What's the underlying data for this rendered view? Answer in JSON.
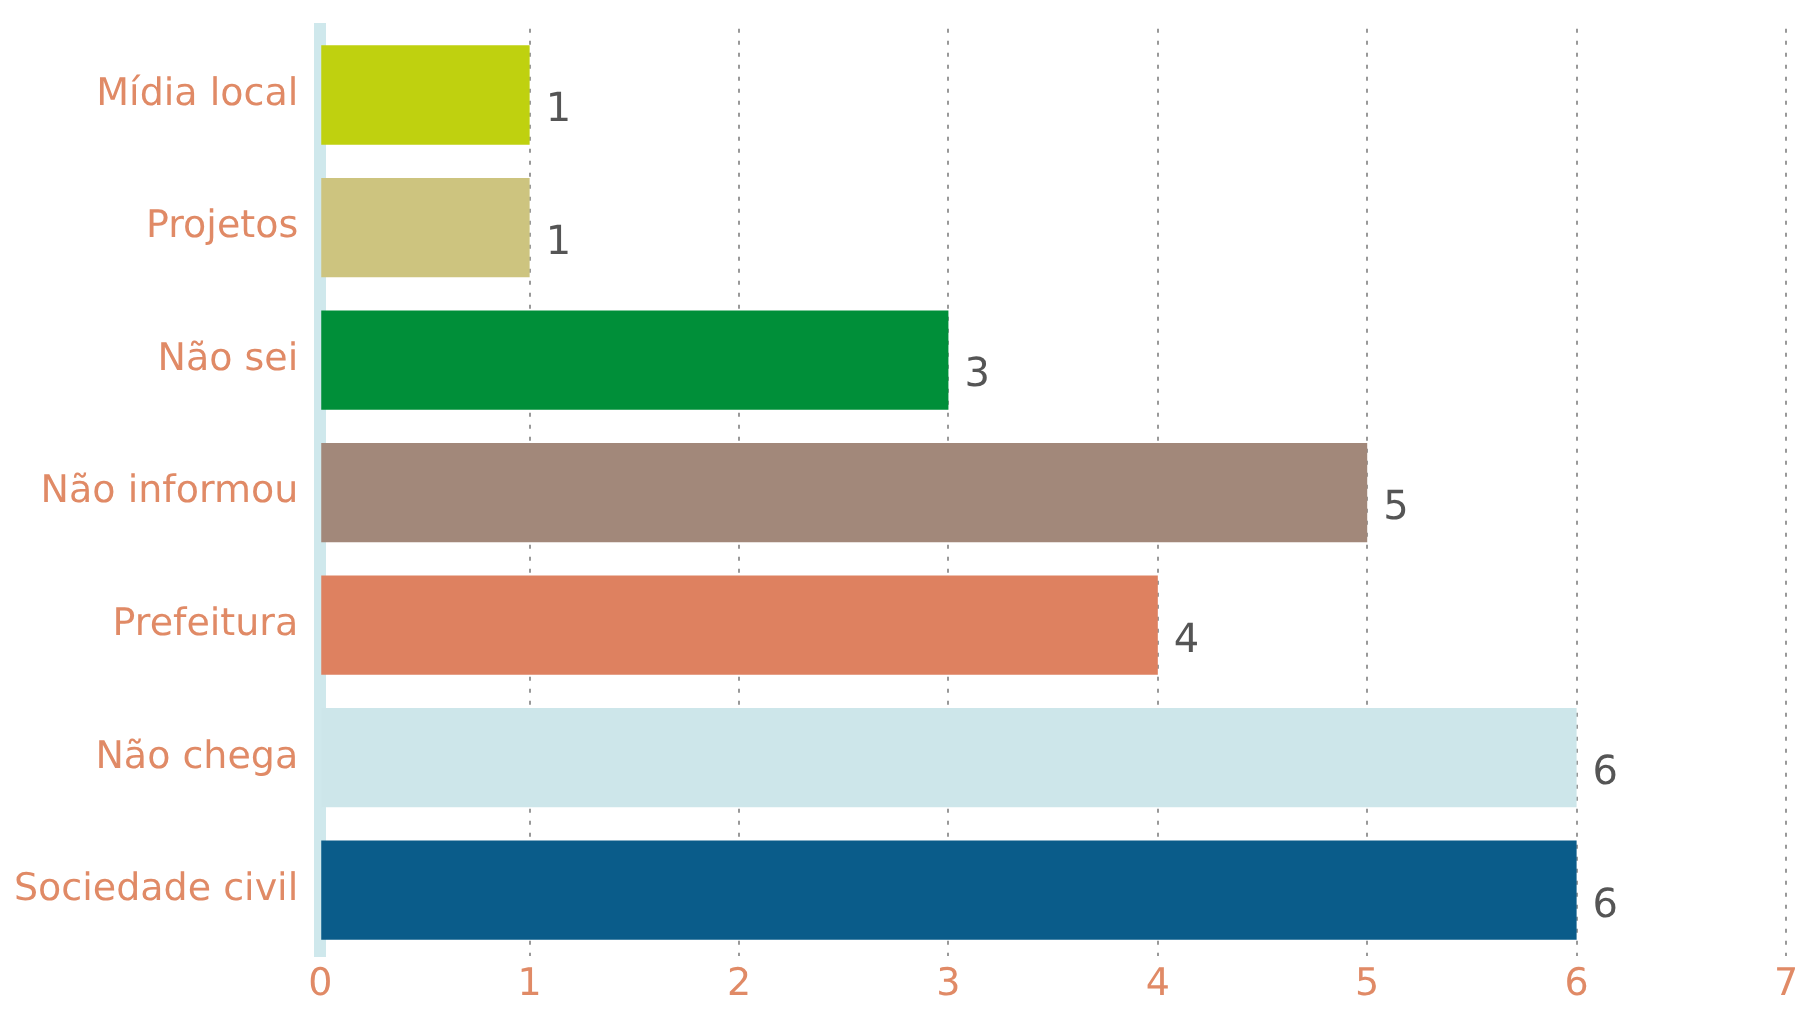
{
  "chart_data": {
    "type": "bar",
    "orientation": "horizontal",
    "categories": [
      "Mídia local",
      "Projetos",
      "Não sei",
      "Não informou",
      "Prefeitura",
      "Não chega",
      "Sociedade civil"
    ],
    "values": [
      1,
      1,
      3,
      5,
      4,
      6,
      6
    ],
    "colors": [
      "#bfd10f",
      "#cdc47f",
      "#008f39",
      "#a2887a",
      "#de8160",
      "#cde6ea",
      "#0a5c8a"
    ],
    "xlim": [
      0,
      7
    ],
    "xticks": [
      0,
      1,
      2,
      3,
      4,
      5,
      6,
      7
    ],
    "grid": "x",
    "data_labels": true,
    "legend": false
  }
}
